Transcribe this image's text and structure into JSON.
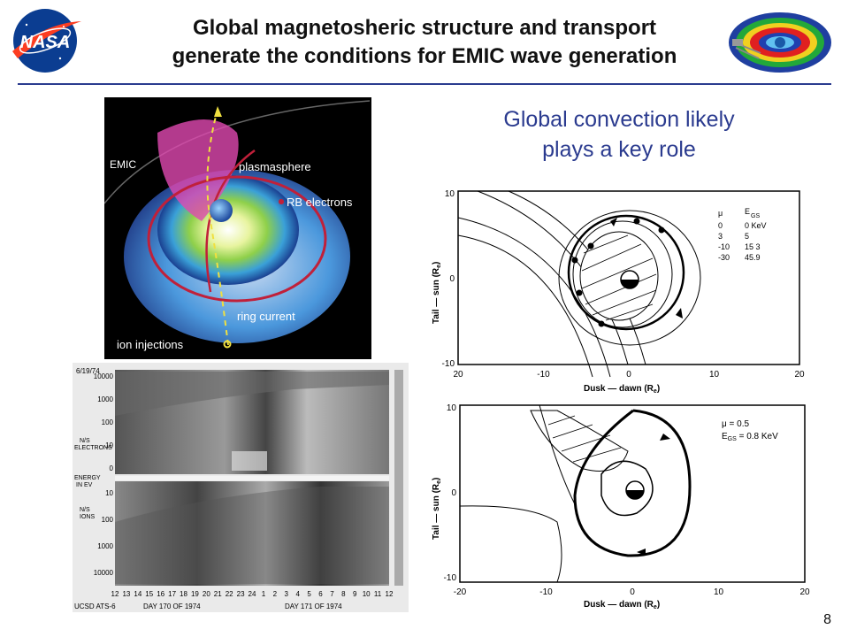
{
  "slide": {
    "title_line1": "Global magnetosheric structure and transport",
    "title_line2": "generate the conditions for EMIC wave generation",
    "subtitle_line1": "Global convection likely",
    "subtitle_line2": "plays a key role",
    "page_number": "8"
  },
  "logo": {
    "text": "NASA"
  },
  "illustration": {
    "labels": {
      "emic": "EMIC",
      "plasmasphere": "plasmasphere",
      "rb_electrons": "RB electrons",
      "ring_current": "ring current",
      "ion_injections": "ion injections"
    }
  },
  "spectrogram": {
    "date": "6/19/74",
    "electrons_label_1": "N/S",
    "electrons_label_2": "ELECTRONS",
    "ions_label_1": "N/S",
    "ions_label_2": "IONS",
    "energy_label_1": "ENERGY",
    "energy_label_2": "IN EV",
    "top_ticks": [
      "10000",
      "1000",
      "100",
      "10",
      "0"
    ],
    "bottom_ticks": [
      "10",
      "100",
      "1000",
      "10000"
    ],
    "hours": [
      "12",
      "13",
      "14",
      "15",
      "16",
      "17",
      "18",
      "19",
      "20",
      "21",
      "22",
      "23",
      "24",
      "1",
      "2",
      "3",
      "4",
      "5",
      "6",
      "7",
      "8",
      "9",
      "10",
      "11",
      "12"
    ],
    "source": "UCSD ATS-6",
    "day1": "DAY 170 OF 1974",
    "day2": "DAY 171 OF 1974"
  },
  "plot_top": {
    "ylabel": "Tail — sun (R",
    "xlabel": "Dusk — dawn (R",
    "units_sub": "e",
    "xticks": [
      "20",
      "-10",
      "0",
      "10",
      "20"
    ],
    "yticks": [
      "10",
      "0",
      "-10"
    ],
    "legend_header_mu": "μ",
    "legend_header_egs": "E",
    "legend_header_gs": "GS",
    "legend_rows": [
      {
        "mu": "0",
        "e": "0 KeV"
      },
      {
        "mu": "3",
        "e": "5"
      },
      {
        "mu": "-10",
        "e": "15 3"
      },
      {
        "mu": "-30",
        "e": "45.9"
      }
    ]
  },
  "plot_bottom": {
    "ylabel": "Tail — sun (R",
    "xlabel": "Dusk — dawn (R",
    "units_sub": "e",
    "xticks": [
      "-20",
      "-10",
      "0",
      "10",
      "20"
    ],
    "yticks": [
      "10",
      "0",
      "-10"
    ],
    "legend_line1": "μ = 0.5",
    "legend_line2": "E",
    "legend_line2_sub": "GS",
    "legend_line2_val": " = 0.8 KeV"
  }
}
